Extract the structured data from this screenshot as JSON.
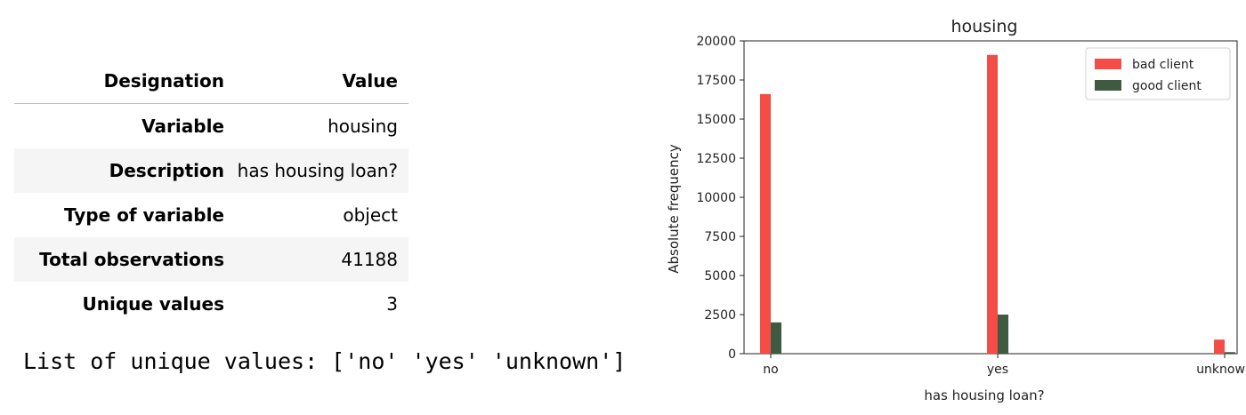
{
  "table": {
    "header": {
      "designation": "Designation",
      "value": "Value"
    },
    "rows": [
      {
        "label": "Variable",
        "value": "housing"
      },
      {
        "label": "Description",
        "value": "has housing loan?"
      },
      {
        "label": "Type of variable",
        "value": "object"
      },
      {
        "label": "Total observations",
        "value": "41188"
      },
      {
        "label": "Unique values",
        "value": "3"
      }
    ]
  },
  "unique_values_text": "List of unique values: ['no' 'yes' 'unknown']",
  "chart_data": {
    "type": "bar",
    "title": "housing",
    "xlabel": "has housing loan?",
    "ylabel": "Absolute frequency",
    "categories": [
      "no",
      "yes",
      "unknown"
    ],
    "series": [
      {
        "name": "bad client",
        "color": "#f44c46",
        "values": [
          16600,
          19100,
          900
        ]
      },
      {
        "name": "good client",
        "color": "#3e5a40",
        "values": [
          2000,
          2500,
          100
        ]
      }
    ],
    "ylim": [
      0,
      20000
    ],
    "yticks": [
      "0",
      "2500",
      "5000",
      "7500",
      "10000",
      "12500",
      "15000",
      "17500",
      "20000"
    ],
    "legend": "top-right",
    "grid": false
  }
}
